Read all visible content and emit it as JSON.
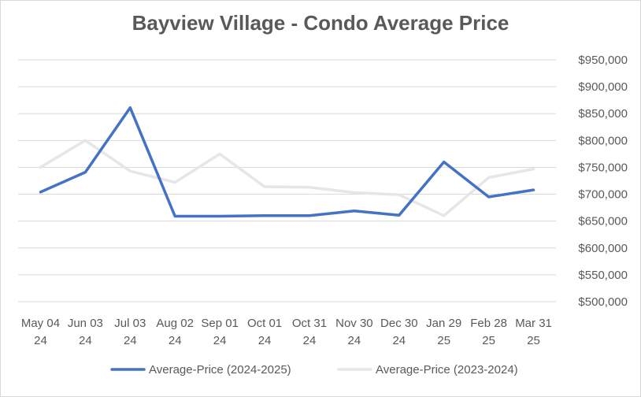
{
  "chart_data": {
    "type": "line",
    "title": "Bayview Village - Condo Average Price",
    "categories": [
      [
        "May 04",
        "24"
      ],
      [
        "Jun 03",
        "24"
      ],
      [
        "Jul 03",
        "24"
      ],
      [
        "Aug 02",
        "24"
      ],
      [
        "Sep 01",
        "24"
      ],
      [
        "Oct 01",
        "24"
      ],
      [
        "Oct 31",
        "24"
      ],
      [
        "Nov 30",
        "24"
      ],
      [
        "Dec 30",
        "24"
      ],
      [
        "Jan 29",
        "25"
      ],
      [
        "Feb 28",
        "25"
      ],
      [
        "Mar 31",
        "25"
      ]
    ],
    "series": [
      {
        "name": "Average-Price (2024-2025)",
        "color": "#4472c4",
        "values": [
          704000,
          741000,
          861000,
          659000,
          659000,
          660000,
          660000,
          669000,
          661000,
          760000,
          695000,
          708000
        ]
      },
      {
        "name": "Average-Price (2023-2024)",
        "color": "#e7e6e6",
        "values": [
          750000,
          800000,
          743000,
          722000,
          775000,
          714000,
          713000,
          703000,
          699000,
          660000,
          731000,
          747000
        ]
      }
    ],
    "ylim": [
      500000,
      950000
    ],
    "yticks": [
      500000,
      550000,
      600000,
      650000,
      700000,
      750000,
      800000,
      850000,
      900000,
      950000
    ],
    "ytick_labels": [
      "$500,000",
      "$550,000",
      "$600,000",
      "$650,000",
      "$700,000",
      "$750,000",
      "$800,000",
      "$850,000",
      "$900,000",
      "$950,000"
    ],
    "y_axis_side": "right",
    "grid": true,
    "legend_position": "bottom"
  }
}
